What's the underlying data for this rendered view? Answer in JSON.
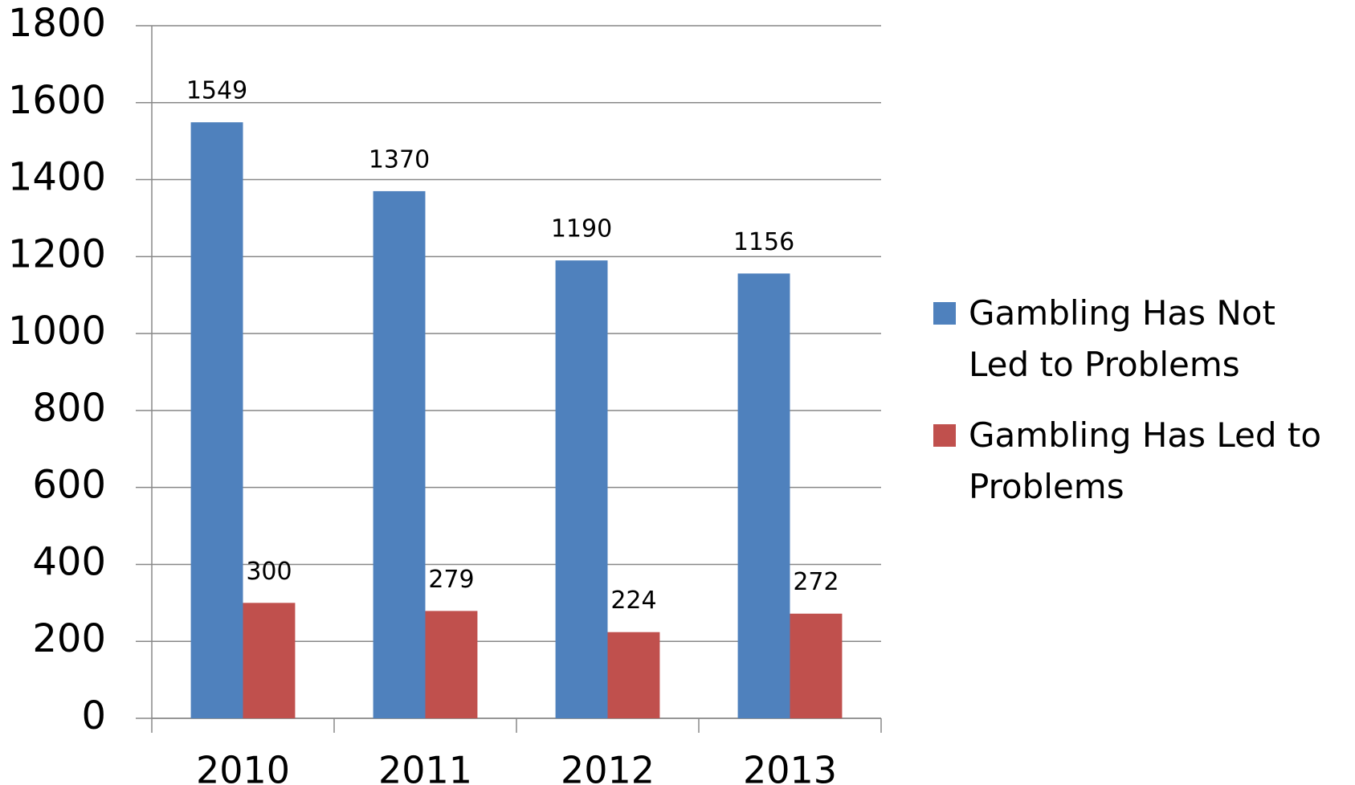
{
  "chart_data": {
    "type": "bar",
    "categories": [
      "2010",
      "2011",
      "2012",
      "2013"
    ],
    "series": [
      {
        "name": "Gambling Has Not Led to Problems",
        "color": "#4f81bd",
        "values": [
          1549,
          1370,
          1190,
          1156
        ]
      },
      {
        "name": "Gambling Has Led to Problems",
        "color": "#c0504d",
        "values": [
          300,
          279,
          224,
          272
        ]
      }
    ],
    "ylim": [
      0,
      1800
    ],
    "yticks": [
      0,
      200,
      400,
      600,
      800,
      1000,
      1200,
      1400,
      1600,
      1800
    ],
    "grid": true,
    "legend": "right"
  }
}
